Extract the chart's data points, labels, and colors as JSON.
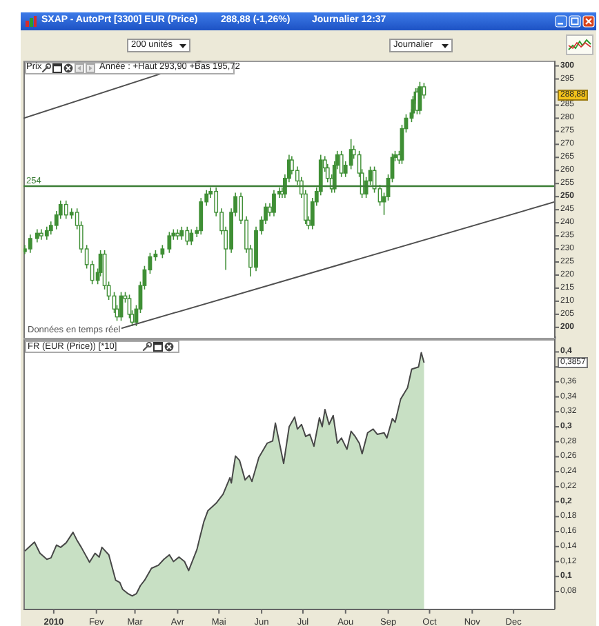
{
  "chart_data": [
    {
      "type": "candlestick",
      "title": "SXAP - AutoPrt [3300] EUR (Price)",
      "color": "#3f8f35",
      "x": [
        "2009-12-11",
        "2009-12-15",
        "2009-12-20",
        "2009-12-23",
        "2009-12-27",
        "2009-12-30",
        "2010-01-03",
        "2010-01-06",
        "2010-01-10",
        "2010-01-14",
        "2010-01-18",
        "2010-01-21",
        "2010-01-25",
        "2010-01-29",
        "2010-02-02",
        "2010-02-04",
        "2010-02-07",
        "2010-02-10",
        "2010-02-14",
        "2010-02-16",
        "2010-02-19",
        "2010-02-22",
        "2010-02-25",
        "2010-02-27",
        "2010-03-02",
        "2010-03-05",
        "2010-03-08",
        "2010-03-12",
        "2010-03-16",
        "2010-03-21",
        "2010-03-26",
        "2010-03-29",
        "2010-04-01",
        "2010-04-04",
        "2010-04-08",
        "2010-04-11",
        "2010-04-15",
        "2010-04-18",
        "2010-04-22",
        "2010-04-25",
        "2010-04-29",
        "2010-05-03",
        "2010-05-06",
        "2010-05-10",
        "2010-05-13",
        "2010-05-17",
        "2010-05-21",
        "2010-05-24",
        "2010-05-28",
        "2010-06-01",
        "2010-06-04",
        "2010-06-07",
        "2010-06-10",
        "2010-06-14",
        "2010-06-16",
        "2010-06-18",
        "2010-06-21",
        "2010-06-23",
        "2010-06-27",
        "2010-06-30",
        "2010-07-03",
        "2010-07-05",
        "2010-07-08",
        "2010-07-11",
        "2010-07-14",
        "2010-07-17",
        "2010-07-19",
        "2010-07-22",
        "2010-07-24",
        "2010-07-26",
        "2010-07-29",
        "2010-08-01",
        "2010-08-05",
        "2010-08-07",
        "2010-08-11",
        "2010-08-13",
        "2010-08-16",
        "2010-08-19",
        "2010-08-22",
        "2010-08-26",
        "2010-08-29",
        "2010-09-01",
        "2010-09-04",
        "2010-09-06",
        "2010-09-09",
        "2010-09-11",
        "2010-09-14",
        "2010-09-18",
        "2010-09-19",
        "2010-09-21",
        "2010-09-22",
        "2010-09-24",
        "2010-09-27"
      ],
      "ohlc": [
        [
          229,
          231.5,
          228,
          230
        ],
        [
          230,
          235.5,
          228.5,
          234
        ],
        [
          234,
          237.5,
          232.5,
          236
        ],
        [
          236,
          237.5,
          233.5,
          235
        ],
        [
          235,
          238.5,
          233.5,
          237
        ],
        [
          237,
          240.5,
          235.5,
          239
        ],
        [
          239,
          244.5,
          237.5,
          243
        ],
        [
          243,
          248.5,
          241.5,
          247
        ],
        [
          247,
          248.5,
          241.5,
          243
        ],
        [
          243,
          245.5,
          241.5,
          244
        ],
        [
          244,
          245.5,
          237.5,
          239
        ],
        [
          239,
          240.5,
          228.5,
          230
        ],
        [
          230,
          231.5,
          222.5,
          224
        ],
        [
          224,
          225.5,
          216.5,
          218
        ],
        [
          218,
          222.5,
          216.5,
          221
        ],
        [
          221,
          229.5,
          219.5,
          228
        ],
        [
          228,
          229.5,
          214.5,
          216
        ],
        [
          216,
          217.5,
          210.5,
          212
        ],
        [
          212,
          213.5,
          205.5,
          207
        ],
        [
          207,
          208.5,
          202.5,
          204
        ],
        [
          204,
          213.5,
          202.5,
          212
        ],
        [
          212,
          213.5,
          209.5,
          211
        ],
        [
          211,
          212.5,
          203.5,
          205
        ],
        [
          205,
          206.5,
          200.5,
          202
        ],
        [
          202,
          208.5,
          200.5,
          207
        ],
        [
          207,
          217.5,
          205.5,
          216
        ],
        [
          216,
          223.5,
          214.5,
          222
        ],
        [
          222,
          228.5,
          220.5,
          227
        ],
        [
          227,
          229.5,
          225.5,
          228
        ],
        [
          228,
          231.5,
          226.5,
          230
        ],
        [
          230,
          236.5,
          228.5,
          235
        ],
        [
          235,
          237.5,
          233.5,
          236
        ],
        [
          236,
          237.5,
          233.5,
          235
        ],
        [
          235,
          238.5,
          233.5,
          237
        ],
        [
          237,
          238.5,
          231.5,
          233
        ],
        [
          233,
          237.5,
          231.5,
          236
        ],
        [
          236,
          238.5,
          234.5,
          237
        ],
        [
          237,
          249.5,
          235.5,
          248
        ],
        [
          248,
          252.5,
          246.5,
          251
        ],
        [
          251,
          253.5,
          249.5,
          252
        ],
        [
          252,
          253.5,
          242.5,
          244
        ],
        [
          244,
          245.5,
          235.5,
          237
        ],
        [
          237,
          238.5,
          222,
          230
        ],
        [
          230,
          245.5,
          228.5,
          244
        ],
        [
          244,
          251.5,
          242.5,
          250
        ],
        [
          250,
          251.5,
          239.5,
          241
        ],
        [
          241,
          242.5,
          228.5,
          230
        ],
        [
          230,
          231.5,
          219.5,
          223
        ],
        [
          223,
          238.5,
          221.5,
          237
        ],
        [
          237,
          242.5,
          235.5,
          241
        ],
        [
          241,
          247.5,
          239.5,
          246
        ],
        [
          246,
          247.5,
          242.5,
          244
        ],
        [
          244,
          252.5,
          242.5,
          251
        ],
        [
          251,
          253.5,
          249.5,
          252
        ],
        [
          252,
          253.5,
          249.5,
          251
        ],
        [
          251,
          258.5,
          249.5,
          257
        ],
        [
          257,
          266,
          255.5,
          264
        ],
        [
          264,
          265.5,
          258.5,
          260
        ],
        [
          260,
          261.5,
          254.5,
          256
        ],
        [
          256,
          257.5,
          249.5,
          251
        ],
        [
          251,
          252.5,
          239.5,
          241
        ],
        [
          241,
          242.5,
          237.5,
          239
        ],
        [
          239,
          249.5,
          237.5,
          248
        ],
        [
          248,
          253.5,
          246.5,
          252
        ],
        [
          252,
          266,
          250.5,
          264
        ],
        [
          264,
          265.5,
          259.5,
          261
        ],
        [
          261,
          262.5,
          255.5,
          257
        ],
        [
          257,
          258.5,
          251.5,
          253
        ],
        [
          253,
          263.5,
          251.5,
          262
        ],
        [
          262,
          267.5,
          260.5,
          266
        ],
        [
          266,
          267.5,
          257.5,
          259
        ],
        [
          259,
          263.5,
          257.5,
          262
        ],
        [
          262,
          272,
          260.5,
          268
        ],
        [
          268,
          269.5,
          264.5,
          266
        ],
        [
          266,
          267.5,
          257.5,
          259
        ],
        [
          259,
          260.5,
          249.5,
          251
        ],
        [
          251,
          257.5,
          249.5,
          256
        ],
        [
          256,
          261.5,
          254.5,
          260
        ],
        [
          260,
          261.5,
          251.5,
          253
        ],
        [
          253,
          254.5,
          246.5,
          248
        ],
        [
          248,
          251.5,
          243,
          250
        ],
        [
          250,
          258.5,
          248.5,
          257
        ],
        [
          257,
          266.5,
          255.5,
          265
        ],
        [
          265,
          267.5,
          263.5,
          266
        ],
        [
          266,
          267.5,
          262.5,
          264
        ],
        [
          264,
          277.5,
          262.5,
          276
        ],
        [
          276,
          281.5,
          274.5,
          280
        ],
        [
          280,
          283.5,
          278.5,
          282
        ],
        [
          282,
          288.5,
          280.5,
          287
        ],
        [
          287,
          291.5,
          285.5,
          290
        ],
        [
          290,
          291.5,
          281.5,
          283
        ],
        [
          283,
          293.9,
          281.5,
          292
        ],
        [
          292,
          293.5,
          287.5,
          288.88
        ]
      ],
      "series": [
        {
          "type": "line",
          "color": "#505050",
          "x": [
            "2009-12-10",
            "2010-04-18"
          ],
          "values": [
            280,
            302
          ]
        },
        {
          "type": "line",
          "color": "#505050",
          "x": [
            "2010-02-02",
            "2010-12-31"
          ],
          "values": [
            197,
            248
          ]
        }
      ],
      "xlim": [
        "2009-12-10",
        "2010-12-31"
      ],
      "ylim": [
        196,
        302
      ],
      "yticks": [
        200,
        205,
        210,
        215,
        220,
        225,
        230,
        235,
        240,
        245,
        250,
        255,
        260,
        265,
        270,
        275,
        280,
        285,
        {
          "value": 290,
          "label": null
        },
        295,
        300
      ],
      "tick_labels": "y",
      "ref_lines": [
        {
          "axis": "y",
          "value": 254,
          "label": "254",
          "color": "#3b7d35"
        }
      ],
      "annotations": [
        "288,88 (-1,26%)",
        "Journalier 12:37",
        "200 unités",
        "Journalier",
        "Prix",
        "Année : +Haut 293,90 +Bas 195,72",
        "Données en temps réel",
        {
          "text": "288,88",
          "y": 288.88
        }
      ]
    },
    {
      "type": "area",
      "title": "FR (EUR (Price)) [*10]",
      "color": "#c8e0c4",
      "x": [
        "2009-12-11",
        "2009-12-18",
        "2009-12-22",
        "2009-12-27",
        "2009-12-30",
        "2010-01-03",
        "2010-01-06",
        "2010-01-10",
        "2010-01-15",
        "2010-01-18",
        "2010-01-21",
        "2010-01-27",
        "2010-01-31",
        "2010-02-03",
        "2010-02-05",
        "2010-02-10",
        "2010-02-15",
        "2010-02-18",
        "2010-02-20",
        "2010-02-24",
        "2010-02-27",
        "2010-03-02",
        "2010-03-05",
        "2010-03-08",
        "2010-03-13",
        "2010-03-18",
        "2010-03-22",
        "2010-03-26",
        "2010-03-29",
        "2010-04-02",
        "2010-04-06",
        "2010-04-09",
        "2010-04-15",
        "2010-04-17",
        "2010-04-20",
        "2010-04-23",
        "2010-04-29",
        "2010-05-04",
        "2010-05-09",
        "2010-05-10",
        "2010-05-13",
        "2010-05-16",
        "2010-05-20",
        "2010-05-23",
        "2010-05-25",
        "2010-05-30",
        "2010-06-05",
        "2010-06-09",
        "2010-06-11",
        "2010-06-14",
        "2010-06-17",
        "2010-06-21",
        "2010-06-25",
        "2010-06-27",
        "2010-06-30",
        "2010-07-03",
        "2010-07-06",
        "2010-07-09",
        "2010-07-13",
        "2010-07-15",
        "2010-07-17",
        "2010-07-20",
        "2010-07-23",
        "2010-07-26",
        "2010-07-29",
        "2010-08-02",
        "2010-08-05",
        "2010-08-08",
        "2010-08-11",
        "2010-08-13",
        "2010-08-17",
        "2010-08-21",
        "2010-08-24",
        "2010-08-29",
        "2010-08-31",
        "2010-09-04",
        "2010-09-06",
        "2010-09-10",
        "2010-09-13",
        "2010-09-15",
        "2010-09-18",
        "2010-09-23",
        "2010-09-25",
        "2010-09-27"
      ],
      "values": [
        0.134,
        0.146,
        0.131,
        0.123,
        0.125,
        0.142,
        0.139,
        0.145,
        0.159,
        0.148,
        0.139,
        0.119,
        0.131,
        0.126,
        0.139,
        0.129,
        0.095,
        0.092,
        0.083,
        0.077,
        0.074,
        0.077,
        0.088,
        0.095,
        0.111,
        0.115,
        0.123,
        0.129,
        0.12,
        0.126,
        0.12,
        0.108,
        0.136,
        0.151,
        0.173,
        0.188,
        0.198,
        0.21,
        0.232,
        0.225,
        0.261,
        0.255,
        0.229,
        0.235,
        0.227,
        0.259,
        0.278,
        0.281,
        0.305,
        0.278,
        0.251,
        0.3,
        0.313,
        0.297,
        0.303,
        0.287,
        0.29,
        0.274,
        0.312,
        0.3,
        0.323,
        0.303,
        0.315,
        0.278,
        0.285,
        0.27,
        0.294,
        0.287,
        0.278,
        0.264,
        0.292,
        0.297,
        0.29,
        0.292,
        0.285,
        0.311,
        0.306,
        0.337,
        0.346,
        0.352,
        0.377,
        0.38,
        0.399,
        0.3857
      ],
      "xlim": [
        "2009-12-10",
        "2010-12-31"
      ],
      "xticks": [
        {
          "value": "2010-01-01",
          "label": "2010"
        },
        {
          "value": "2010-02-01",
          "label": "Fev"
        },
        {
          "value": "2010-03-01",
          "label": "Mar"
        },
        {
          "value": "2010-04-01",
          "label": "Avr"
        },
        {
          "value": "2010-05-01",
          "label": "Mai"
        },
        {
          "value": "2010-06-01",
          "label": "Jun"
        },
        {
          "value": "2010-07-01",
          "label": "Jul"
        },
        {
          "value": "2010-08-01",
          "label": "Aou"
        },
        {
          "value": "2010-09-01",
          "label": "Sep"
        },
        {
          "value": "2010-10-01",
          "label": "Oct"
        },
        {
          "value": "2010-11-01",
          "label": "Nov"
        },
        {
          "value": "2010-12-01",
          "label": "Dec"
        }
      ],
      "ylim": [
        0.056,
        0.417
      ],
      "yticks": [
        {
          "value": 0.08,
          "label": "0,08"
        },
        {
          "value": 0.1,
          "label": "0,1"
        },
        {
          "value": 0.12,
          "label": "0,12"
        },
        {
          "value": 0.14,
          "label": "0,14"
        },
        {
          "value": 0.16,
          "label": "0,16"
        },
        {
          "value": 0.18,
          "label": "0,18"
        },
        {
          "value": 0.2,
          "label": "0,2"
        },
        {
          "value": 0.22,
          "label": "0,22"
        },
        {
          "value": 0.24,
          "label": "0,24"
        },
        {
          "value": 0.26,
          "label": "0,26"
        },
        {
          "value": 0.28,
          "label": "0,28"
        },
        {
          "value": 0.3,
          "label": "0,3"
        },
        {
          "value": 0.32,
          "label": "0,32"
        },
        {
          "value": 0.34,
          "label": "0,34"
        },
        {
          "value": 0.36,
          "label": "0,36"
        },
        {
          "value": 0.38,
          "label": null
        },
        {
          "value": 0.4,
          "label": "0,4"
        }
      ],
      "annotations": [
        {
          "text": "0,3857",
          "y": 0.3857
        }
      ]
    }
  ]
}
